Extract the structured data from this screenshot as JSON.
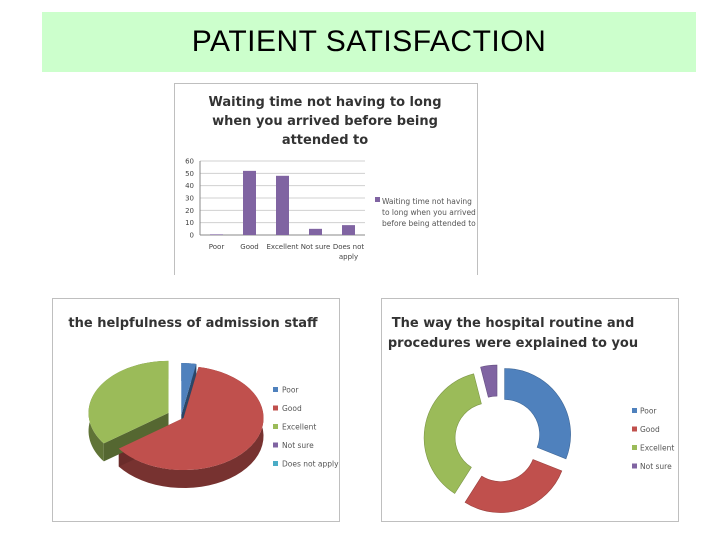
{
  "header": {
    "title": "PATIENT SATISFACTION"
  },
  "chart_data": [
    {
      "type": "bar",
      "title_lines": [
        "Waiting time not having to long",
        "when you arrived before being",
        "attended to"
      ],
      "categories": [
        "Poor",
        "Good",
        "Excellent",
        "Not sure",
        "Does not apply"
      ],
      "category_label_lines": [
        [
          "Poor"
        ],
        [
          "Good"
        ],
        [
          "Excellent"
        ],
        [
          "Not sure"
        ],
        [
          "Does not",
          "apply"
        ]
      ],
      "series": [
        {
          "name": "Waiting time not having to long when you arrived before being attended to",
          "values": [
            0.5,
            52,
            48,
            5,
            8
          ]
        }
      ],
      "legend_lines": [
        "Waiting time not having",
        "to long when you arrived",
        "before being attended to"
      ],
      "yticks": [
        0,
        10,
        20,
        30,
        40,
        50,
        60
      ],
      "ylim": [
        0,
        60
      ],
      "xlabel": "",
      "ylabel": "",
      "grid": true,
      "legend_position": "right",
      "color": "#8064a2"
    },
    {
      "type": "pie",
      "title": "the helpfulness of admission staff",
      "categories": [
        "Poor",
        "Good",
        "Excellent",
        "Not sure",
        "Does not apply"
      ],
      "values": [
        3,
        62,
        35,
        0,
        0
      ],
      "colors": [
        "#4f81bd",
        "#c0504d",
        "#9bbb59",
        "#8064a2",
        "#4bacc6"
      ],
      "legend_position": "right",
      "style": "3d exploded"
    },
    {
      "type": "pie",
      "title_lines": [
        "The way the hospital routine and",
        "procedures were explained to you"
      ],
      "categories": [
        "Poor",
        "Good",
        "Excellent",
        "Not sure"
      ],
      "values": [
        31,
        28,
        37,
        4
      ],
      "colors": [
        "#4f81bd",
        "#c0504d",
        "#9bbb59",
        "#8064a2"
      ],
      "legend_position": "right",
      "style": "exploded doughnut"
    }
  ]
}
